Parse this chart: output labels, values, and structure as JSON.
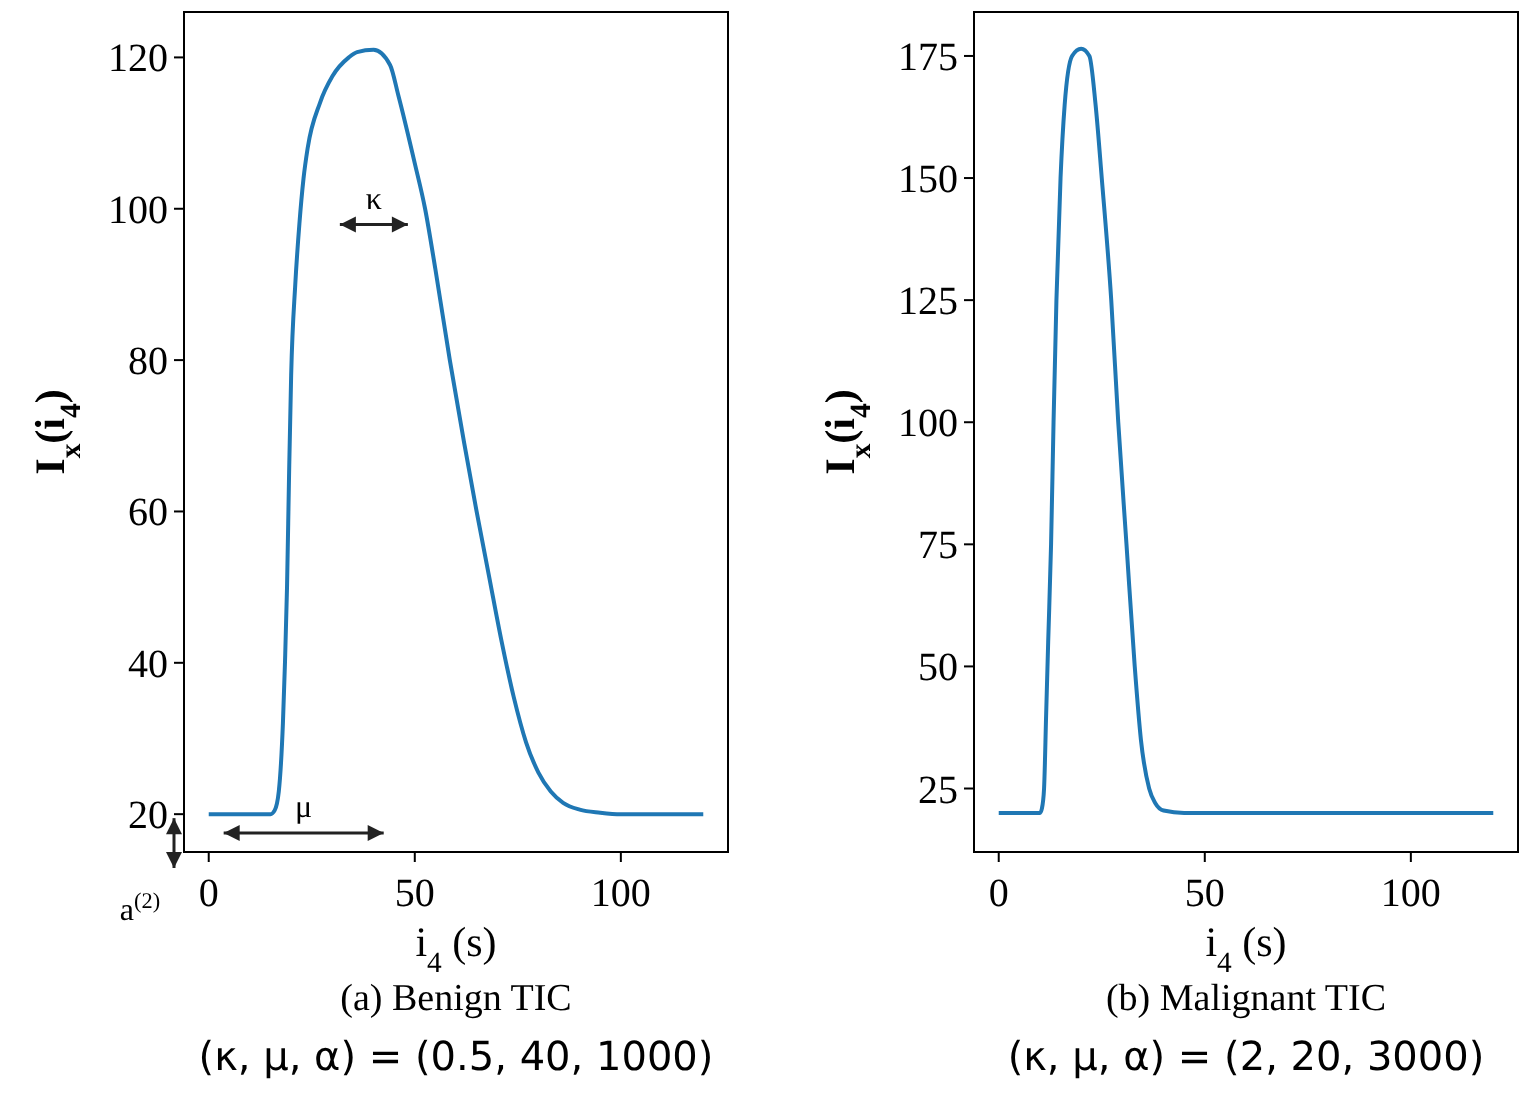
{
  "chart_data": [
    {
      "type": "line",
      "title": "(a) Benign TIC",
      "subtitle": "(κ, μ, α) = (0.5, 40, 1000)",
      "xlabel": "i$_{4}$ (s)",
      "ylabel": "I$_{x}$(i$_{4}$)",
      "x": [
        0,
        15,
        16,
        17,
        18,
        18.5,
        19,
        19.5,
        20,
        21,
        22,
        23,
        24,
        27,
        30,
        34,
        36,
        40,
        44,
        46,
        50,
        52.5,
        55,
        58.5,
        62,
        65,
        68,
        71,
        74,
        77,
        80,
        83,
        86,
        90,
        95,
        100,
        120
      ],
      "series": [
        {
          "color": "#1f77b4",
          "values": [
            20,
            20,
            20.5,
            23,
            32,
            40,
            50,
            65,
            78,
            90,
            98,
            104,
            108,
            114,
            117.5,
            120,
            120.7,
            121,
            119,
            115,
            106,
            100,
            92,
            80,
            69,
            60,
            51.5,
            43,
            35.5,
            29.5,
            25.5,
            23,
            21.5,
            20.6,
            20.2,
            20,
            20
          ]
        }
      ],
      "xlim": [
        -6,
        126
      ],
      "xticks": [
        0,
        50,
        100
      ],
      "ylim": [
        15,
        126
      ],
      "yticks": [
        20,
        40,
        60,
        80,
        100,
        120
      ],
      "annotations": [
        "κ",
        "μ",
        "a$^{(2)}$"
      ]
    },
    {
      "type": "line",
      "title": "(b) Malignant TIC",
      "subtitle": "(κ, μ, α) = (2, 20, 3000)",
      "xlabel": "i$_{4}$ (s)",
      "ylabel": "I$_{x}$(i$_{4}$)",
      "x": [
        0,
        10,
        10.5,
        11,
        11.5,
        12,
        12.7,
        13.3,
        14,
        15,
        16,
        17.8,
        20,
        22,
        23.5,
        25,
        27.3,
        29,
        31,
        33,
        34.5,
        36.5,
        38,
        40,
        45,
        120
      ],
      "series": [
        {
          "color": "#1f77b4",
          "values": [
            20,
            20,
            21,
            25,
            40,
            55,
            75,
            100,
            125,
            150,
            165,
            175,
            176.5,
            175,
            165,
            150,
            125,
            100,
            75,
            50,
            35,
            25,
            22,
            20.5,
            20,
            20
          ]
        }
      ],
      "xlim": [
        -6,
        126
      ],
      "xticks": [
        0,
        50,
        100
      ],
      "ylim": [
        12,
        184
      ],
      "yticks": [
        25,
        50,
        75,
        100,
        125,
        150,
        175
      ]
    }
  ]
}
